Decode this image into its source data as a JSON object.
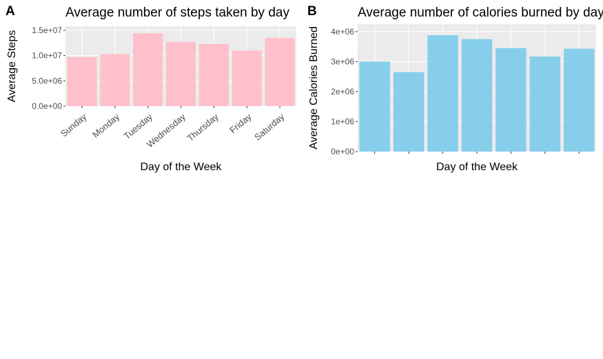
{
  "panels": [
    {
      "letter": "A",
      "title": "Average number of steps taken by day"
    },
    {
      "letter": "B",
      "title": "Average number of calories burned by day"
    }
  ],
  "chart_data": [
    {
      "type": "bar",
      "title": "Average number of steps taken by day",
      "xlabel": "Day of the Week",
      "ylabel": "Average Steps",
      "categories": [
        "Sunday",
        "Monday",
        "Tuesday",
        "Wednesday",
        "Thursday",
        "Friday",
        "Saturday"
      ],
      "values": [
        9700000,
        10300000,
        14400000,
        12700000,
        12300000,
        11000000,
        13500000
      ],
      "ylim": [
        0,
        15800000
      ],
      "yticks": [
        0,
        5000000,
        10000000,
        15000000
      ],
      "ytick_labels": [
        "0.0e+00",
        "5.0e+06",
        "1.0e+07",
        "1.5e+07"
      ],
      "bar_color": "#FFC0CB",
      "grid": true
    },
    {
      "type": "bar",
      "title": "Average number of calories burned by day",
      "xlabel": "Day of the Week",
      "ylabel": "Average Calories Burned",
      "categories": [
        "",
        "",
        "",
        "",
        "",
        "",
        ""
      ],
      "values": [
        3000000,
        2650000,
        3880000,
        3750000,
        3450000,
        3170000,
        3430000
      ],
      "ylim": [
        0,
        4250000
      ],
      "yticks": [
        0,
        1000000,
        2000000,
        3000000,
        4000000
      ],
      "ytick_labels": [
        "0e+00",
        "1e+06",
        "2e+06",
        "3e+06",
        "4e+06"
      ],
      "bar_color": "#87CEEB",
      "grid": true
    }
  ]
}
